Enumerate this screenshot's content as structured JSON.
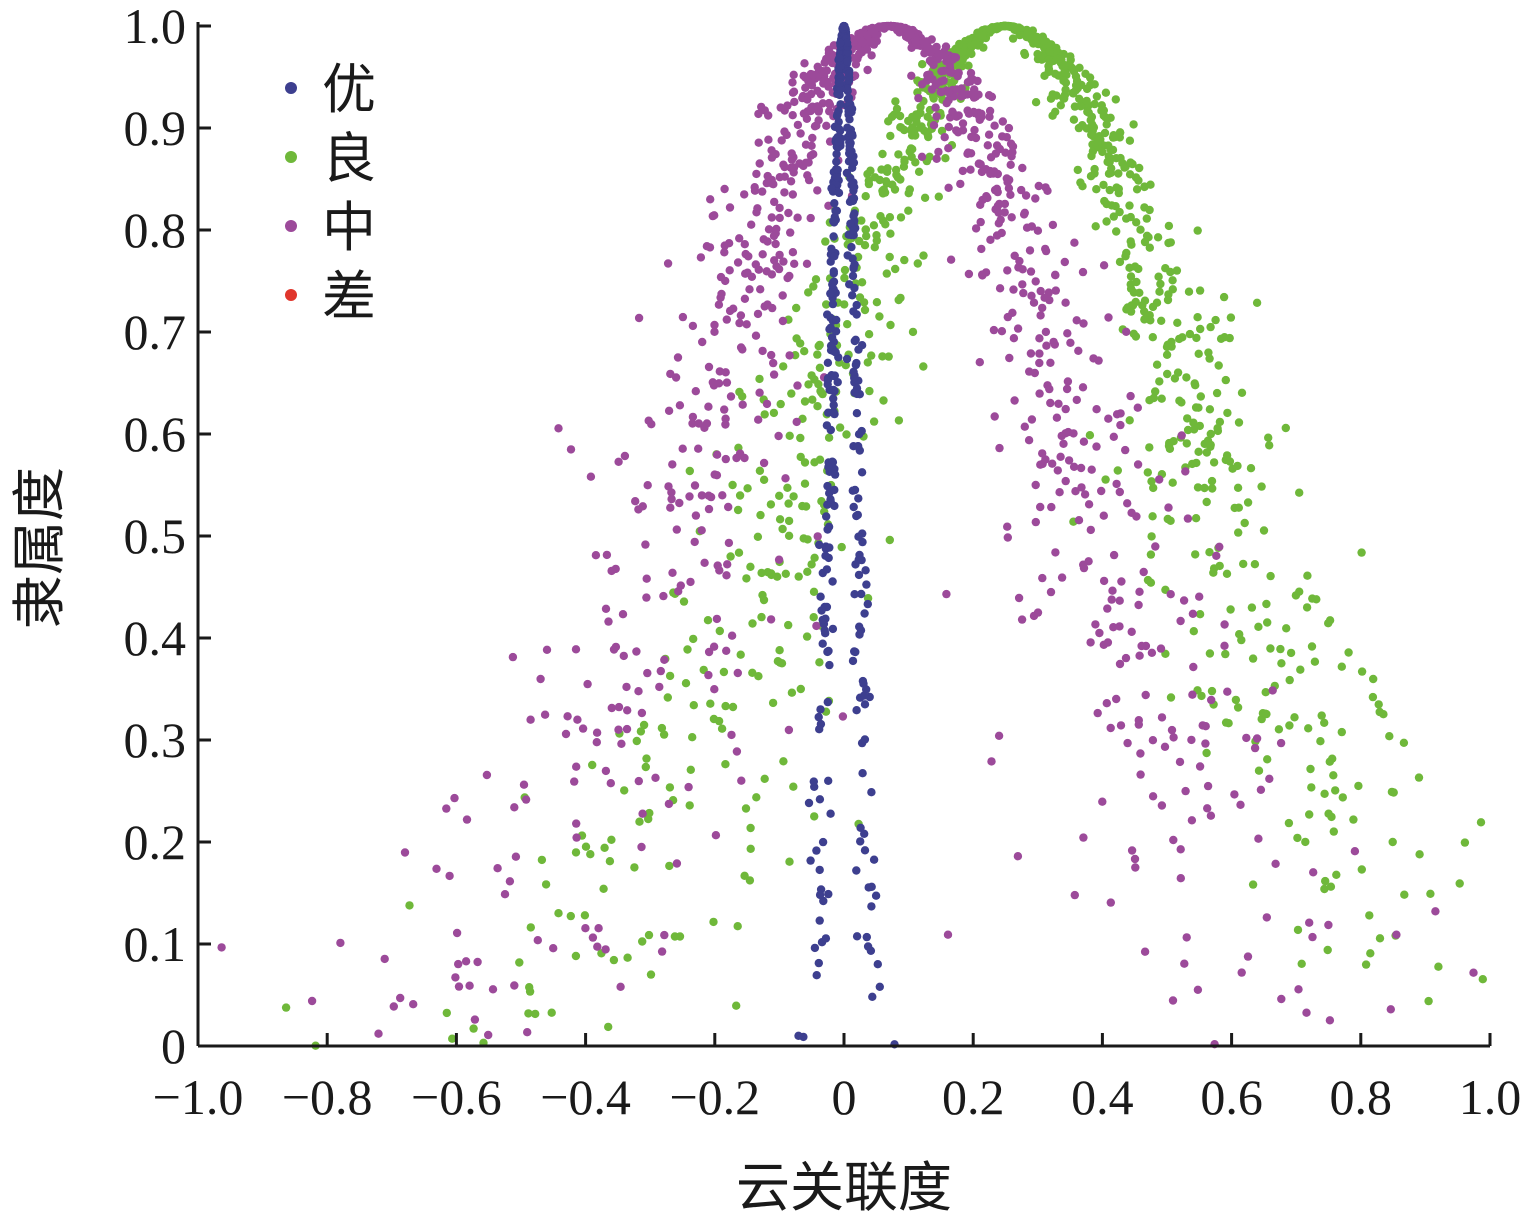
{
  "chart_data": {
    "type": "scatter",
    "title": "",
    "xlabel": "云关联度",
    "ylabel": "隶属度",
    "xlim": [
      -1.0,
      1.0
    ],
    "ylim": [
      0,
      1.0
    ],
    "x_ticks": [
      "−1.0",
      "−0.8",
      "−0.6",
      "−0.4",
      "−0.2",
      "0",
      "0.2",
      "0.4",
      "0.6",
      "0.8",
      "1.0"
    ],
    "y_ticks": [
      "0",
      "0.1",
      "0.2",
      "0.3",
      "0.4",
      "0.5",
      "0.6",
      "0.7",
      "0.8",
      "0.9",
      "1.0"
    ],
    "grid": false,
    "legend_position": "top-left",
    "series": [
      {
        "name": "优",
        "color": "#3d3f8f",
        "distribution": {
          "Ex": 0.0,
          "En": 0.02,
          "He": 0.005
        },
        "count": 450
      },
      {
        "name": "良",
        "color": "#6fb83a",
        "distribution": {
          "Ex": 0.25,
          "En": 0.3,
          "He": 0.06
        },
        "count": 1100
      },
      {
        "name": "中",
        "color": "#9c4a9a",
        "distribution": {
          "Ex": 0.07,
          "En": 0.28,
          "He": 0.07
        },
        "count": 1100
      },
      {
        "name": "差",
        "color": "#e0362c",
        "distribution": null,
        "count": 0
      }
    ]
  }
}
